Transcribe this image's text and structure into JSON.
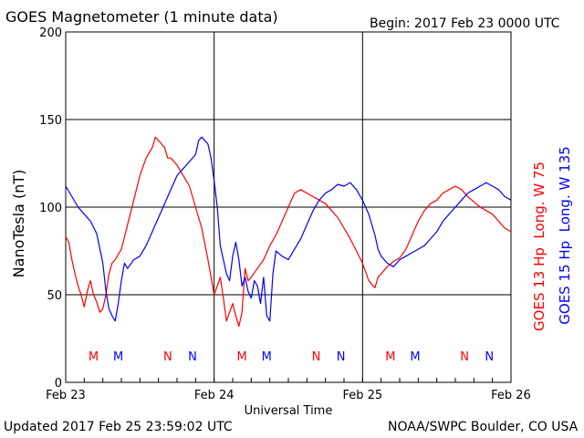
{
  "title": "GOES Magnetometer (1 minute data)",
  "begin": "Begin:  2017 Feb 23 0000 UTC",
  "updated": "Updated 2017 Feb 25 23:59:02 UTC",
  "source": "NOAA/SWPC Boulder, CO USA",
  "colors": {
    "goes13": "#ff0000",
    "goes15": "#0000ff",
    "axes": "#000000"
  },
  "chart_data": {
    "type": "line",
    "xlabel": "Universal Time",
    "ylabel": "NanoTesla (nT)",
    "ylim": [
      0,
      200
    ],
    "xlim": [
      0,
      72
    ],
    "yticks": [
      0,
      50,
      100,
      150,
      200
    ],
    "xticks": [
      {
        "x": 0,
        "label": "Feb 23"
      },
      {
        "x": 24,
        "label": "Feb 24"
      },
      {
        "x": 48,
        "label": "Feb 25"
      },
      {
        "x": 72,
        "label": "Feb 26"
      }
    ],
    "grid": true,
    "legend_position": "right",
    "series": [
      {
        "name": "GOES 13 Hp  Long. W 75",
        "color": "#ff0000",
        "marker_letter": "M",
        "marker_hours": [
          4.5,
          28.5,
          52.5
        ],
        "noon_letter": "N",
        "noon_hours": [
          16.5,
          40.5,
          64.5
        ],
        "points": [
          [
            0,
            83
          ],
          [
            0.5,
            80
          ],
          [
            1,
            70
          ],
          [
            1.5,
            62
          ],
          [
            2,
            55
          ],
          [
            2.5,
            50
          ],
          [
            3,
            43
          ],
          [
            3.5,
            52
          ],
          [
            4,
            58
          ],
          [
            4.5,
            50
          ],
          [
            5,
            46
          ],
          [
            5.5,
            40
          ],
          [
            6,
            42
          ],
          [
            6.5,
            50
          ],
          [
            7,
            62
          ],
          [
            7.5,
            68
          ],
          [
            8,
            70
          ],
          [
            9,
            76
          ],
          [
            10,
            90
          ],
          [
            11,
            104
          ],
          [
            12,
            118
          ],
          [
            13,
            128
          ],
          [
            14,
            134
          ],
          [
            14.5,
            140
          ],
          [
            15,
            138
          ],
          [
            16,
            134
          ],
          [
            16.5,
            128
          ],
          [
            17,
            128
          ],
          [
            18,
            124
          ],
          [
            19,
            118
          ],
          [
            20,
            112
          ],
          [
            21,
            100
          ],
          [
            22,
            88
          ],
          [
            23,
            70
          ],
          [
            24,
            50
          ],
          [
            24.5,
            55
          ],
          [
            25,
            60
          ],
          [
            25.5,
            48
          ],
          [
            26,
            35
          ],
          [
            26.5,
            40
          ],
          [
            27,
            45
          ],
          [
            27.5,
            38
          ],
          [
            28,
            32
          ],
          [
            28.5,
            40
          ],
          [
            29,
            65
          ],
          [
            29.5,
            58
          ],
          [
            30,
            60
          ],
          [
            31,
            65
          ],
          [
            32,
            70
          ],
          [
            33,
            78
          ],
          [
            34,
            84
          ],
          [
            35,
            92
          ],
          [
            36,
            100
          ],
          [
            37,
            108
          ],
          [
            38,
            110
          ],
          [
            39,
            108
          ],
          [
            40,
            106
          ],
          [
            41,
            104
          ],
          [
            42,
            102
          ],
          [
            43,
            98
          ],
          [
            44,
            94
          ],
          [
            45,
            88
          ],
          [
            46,
            82
          ],
          [
            47,
            75
          ],
          [
            48,
            68
          ],
          [
            49,
            58
          ],
          [
            50,
            54
          ],
          [
            50.5,
            60
          ],
          [
            51,
            62
          ],
          [
            52,
            66
          ],
          [
            53,
            69
          ],
          [
            54,
            71
          ],
          [
            55,
            76
          ],
          [
            56,
            84
          ],
          [
            57,
            92
          ],
          [
            58,
            98
          ],
          [
            59,
            102
          ],
          [
            60,
            104
          ],
          [
            61,
            108
          ],
          [
            62,
            110
          ],
          [
            63,
            112
          ],
          [
            64,
            110
          ],
          [
            65,
            106
          ],
          [
            66,
            103
          ],
          [
            67,
            100
          ],
          [
            68,
            98
          ],
          [
            69,
            96
          ],
          [
            70,
            92
          ],
          [
            71,
            88
          ],
          [
            72,
            86
          ]
        ]
      },
      {
        "name": "GOES 15 Hp  Long. W 135",
        "color": "#0000ff",
        "marker_letter": "M",
        "marker_hours": [
          8.5,
          32.5,
          56.5
        ],
        "noon_letter": "N",
        "noon_hours": [
          20.5,
          44.5,
          68.5
        ],
        "points": [
          [
            0,
            112
          ],
          [
            1,
            106
          ],
          [
            2,
            100
          ],
          [
            3,
            96
          ],
          [
            4,
            92
          ],
          [
            5,
            85
          ],
          [
            6,
            68
          ],
          [
            6.5,
            52
          ],
          [
            7,
            42
          ],
          [
            7.5,
            38
          ],
          [
            8,
            35
          ],
          [
            8.5,
            45
          ],
          [
            9,
            58
          ],
          [
            9.5,
            68
          ],
          [
            10,
            65
          ],
          [
            11,
            70
          ],
          [
            12,
            72
          ],
          [
            13,
            78
          ],
          [
            14,
            86
          ],
          [
            15,
            94
          ],
          [
            16,
            102
          ],
          [
            17,
            110
          ],
          [
            18,
            118
          ],
          [
            19,
            122
          ],
          [
            20,
            126
          ],
          [
            21,
            130
          ],
          [
            21.5,
            138
          ],
          [
            22,
            140
          ],
          [
            23,
            136
          ],
          [
            23.5,
            128
          ],
          [
            24,
            115
          ],
          [
            24.5,
            100
          ],
          [
            25,
            78
          ],
          [
            25.5,
            70
          ],
          [
            26,
            62
          ],
          [
            26.5,
            58
          ],
          [
            27,
            72
          ],
          [
            27.5,
            80
          ],
          [
            28,
            70
          ],
          [
            28.5,
            55
          ],
          [
            29,
            60
          ],
          [
            29.5,
            52
          ],
          [
            30,
            48
          ],
          [
            30.5,
            58
          ],
          [
            31,
            55
          ],
          [
            31.5,
            45
          ],
          [
            32,
            60
          ],
          [
            32.5,
            38
          ],
          [
            33,
            35
          ],
          [
            33.5,
            62
          ],
          [
            34,
            75
          ],
          [
            35,
            72
          ],
          [
            36,
            70
          ],
          [
            37,
            76
          ],
          [
            38,
            82
          ],
          [
            39,
            90
          ],
          [
            40,
            98
          ],
          [
            41,
            104
          ],
          [
            42,
            108
          ],
          [
            43,
            110
          ],
          [
            44,
            113
          ],
          [
            45,
            112
          ],
          [
            46,
            114
          ],
          [
            47,
            110
          ],
          [
            48,
            104
          ],
          [
            49,
            96
          ],
          [
            50,
            84
          ],
          [
            50.5,
            76
          ],
          [
            51,
            72
          ],
          [
            52,
            68
          ],
          [
            53,
            66
          ],
          [
            54,
            70
          ],
          [
            55,
            72
          ],
          [
            56,
            74
          ],
          [
            57,
            76
          ],
          [
            58,
            78
          ],
          [
            59,
            82
          ],
          [
            60,
            86
          ],
          [
            61,
            92
          ],
          [
            62,
            96
          ],
          [
            63,
            100
          ],
          [
            64,
            104
          ],
          [
            65,
            108
          ],
          [
            66,
            110
          ],
          [
            67,
            112
          ],
          [
            68,
            114
          ],
          [
            69,
            112
          ],
          [
            70,
            110
          ],
          [
            71,
            106
          ],
          [
            72,
            104
          ]
        ]
      }
    ]
  }
}
